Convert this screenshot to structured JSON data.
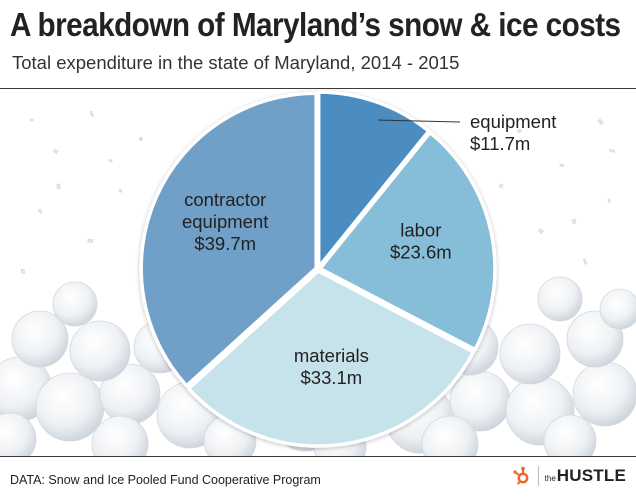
{
  "header": {
    "title": "A breakdown of Maryland’s snow & ice costs",
    "subtitle": "Total expenditure in the state of Maryland, 2014 - 2015"
  },
  "footer": {
    "source": "DATA: Snow and Ice Pooled Fund Cooperative Program",
    "brand_prefix": "the",
    "brand_name": "HUSTLE"
  },
  "colors": {
    "background": "#ffffff",
    "text": "#222222",
    "snowball": "#f3f5f7",
    "snowball_shade": "#d7dde3",
    "brand_accent": "#f0642b"
  },
  "chart_data": {
    "type": "pie",
    "title": "A breakdown of Maryland’s snow & ice costs",
    "subtitle": "Total expenditure in the state of Maryland, 2014 - 2015",
    "unit": "$ millions",
    "slices": [
      {
        "label": "equipment",
        "value_label": "$11.7m",
        "value": 11.7,
        "color": "#4b8cc1"
      },
      {
        "label": "labor",
        "value_label": "$23.6m",
        "value": 23.6,
        "color": "#86bdd8"
      },
      {
        "label": "materials",
        "value_label": "$33.1m",
        "value": 33.1,
        "color": "#c6e2ea"
      },
      {
        "label": "contractor equipment",
        "value_label": "$39.7m",
        "value": 39.7,
        "color": "#6f9fc8"
      }
    ],
    "start_angle": "12 o'clock",
    "direction": "clockwise",
    "legend": "none (direct labels)"
  }
}
